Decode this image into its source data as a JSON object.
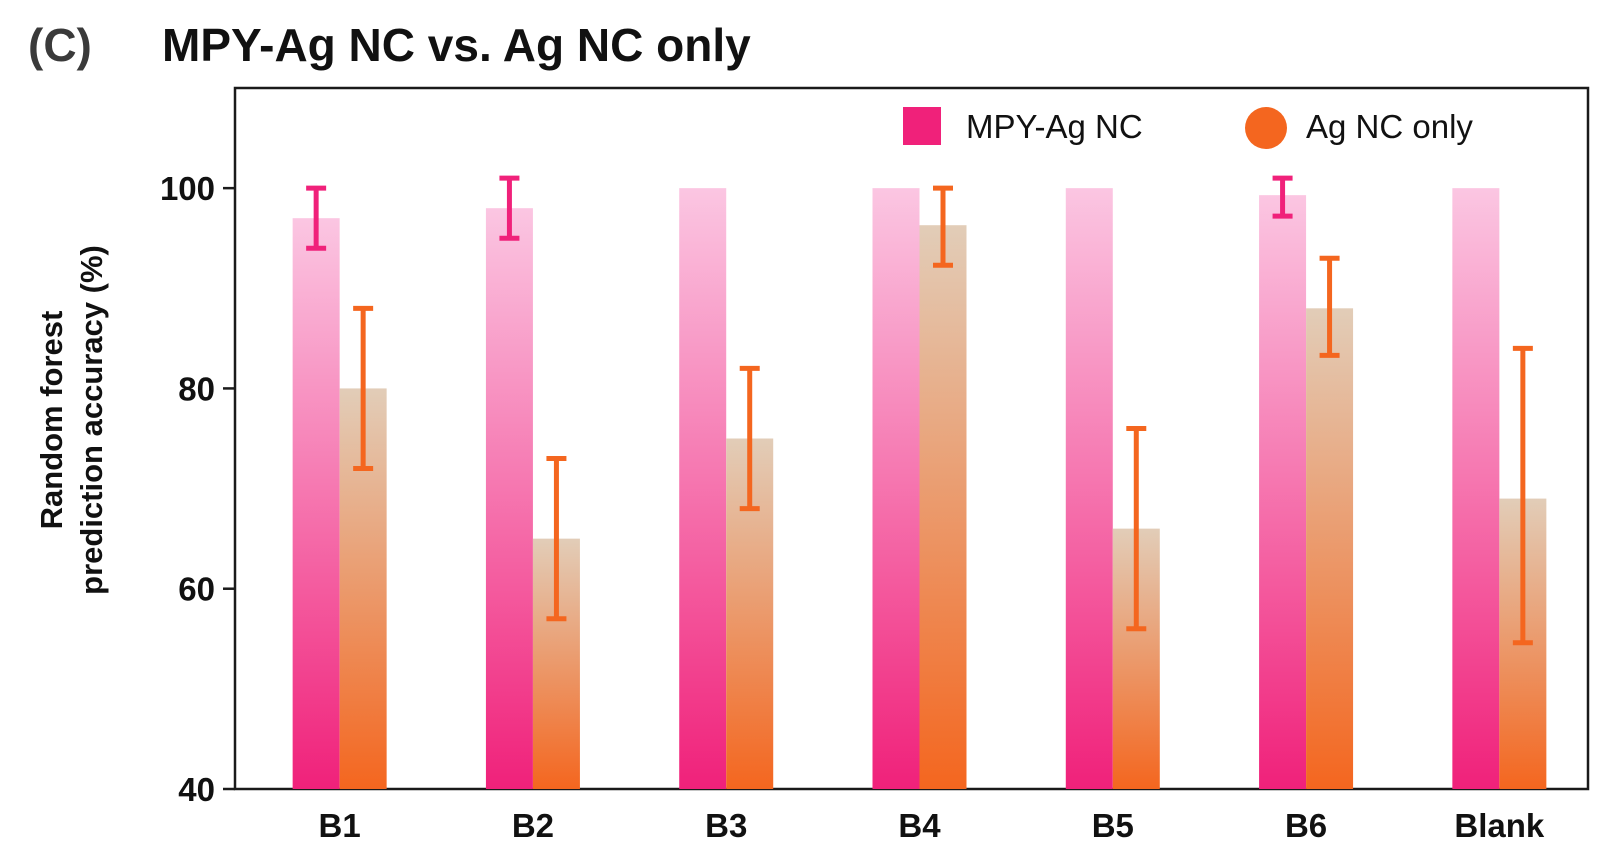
{
  "panel_label": "(C)",
  "chart_data": {
    "type": "bar",
    "title": "MPY-Ag NC vs. Ag NC only",
    "xlabel": "",
    "ylabel": [
      "Random forest",
      "prediction accuracy (%)"
    ],
    "ylim": [
      40,
      110
    ],
    "yticks": [
      40,
      60,
      80,
      100
    ],
    "categories": [
      "B1",
      "B2",
      "B3",
      "B4",
      "B5",
      "B6",
      "Blank"
    ],
    "series": [
      {
        "name": "MPY-Ag NC",
        "color": "#f0217a",
        "color_light": "#fbc6e2",
        "legend_marker": "square",
        "values": [
          97,
          98,
          100,
          100,
          100,
          99.3,
          100
        ],
        "error_low": [
          94,
          95,
          null,
          null,
          null,
          97.2,
          null
        ],
        "error_high": [
          100,
          101,
          null,
          null,
          null,
          101,
          null
        ]
      },
      {
        "name": "Ag NC only",
        "color": "#f4661f",
        "color_light": "#e2cdb8",
        "legend_marker": "circle",
        "values": [
          80,
          65,
          75,
          96.3,
          66,
          88,
          69
        ],
        "error_low": [
          72,
          57,
          68,
          92.3,
          56,
          83.3,
          54.6
        ],
        "error_high": [
          88,
          73,
          82,
          100,
          76,
          93,
          84
        ]
      }
    ],
    "legend_position": "top-right",
    "grid": false
  }
}
